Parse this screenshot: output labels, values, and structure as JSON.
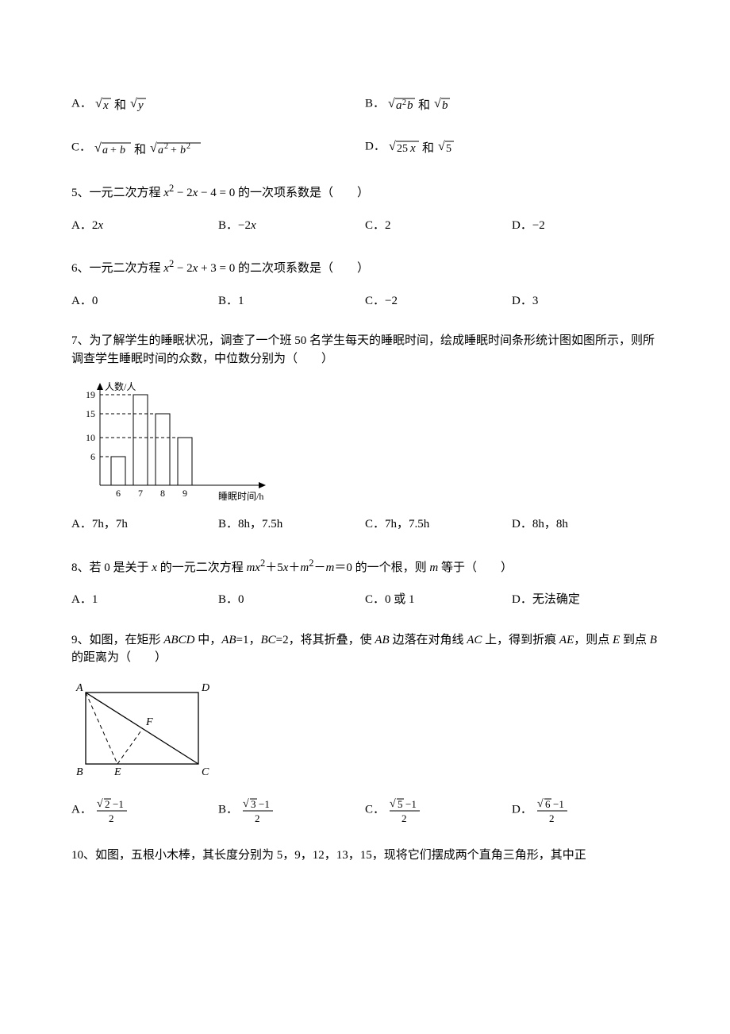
{
  "q4_options": {
    "A_label": "A．",
    "A_math_svg_text": "sqrt(x) 和 sqrt(y)",
    "B_label": "B．",
    "B_math_svg_text": "sqrt(a^2 b) 和 sqrt(b)",
    "C_label": "C．",
    "C_math_svg_text": "sqrt(a+b) 和 sqrt(a^2+b^2)",
    "D_label": "D．",
    "D_math_svg_text": "sqrt(25x) 和 sqrt(5)"
  },
  "q5": {
    "text_before": "5、一元二次方程",
    "equation": "x² − 2x − 4 = 0",
    "text_after": "的一次项系数是（　　）",
    "options": {
      "A": "A．2x",
      "B": "B．−2x",
      "C": "C．2",
      "D": "D．−2"
    }
  },
  "q6": {
    "text_before": "6、一元二次方程",
    "equation": "x² − 2x + 3 = 0",
    "text_after": "的二次项系数是（　　）",
    "options": {
      "A": "A．0",
      "B": "B．1",
      "C": "C．−2",
      "D": "D．3"
    }
  },
  "q7": {
    "text": "7、为了解学生的睡眠状况，调查了一个班 50 名学生每天的睡眠时间，绘成睡眠时间条形统计图如图所示，则所调查学生睡眠时间的众数，中位数分别为（　　）",
    "chart": {
      "x_label": "睡眠时间/h",
      "y_label": "人数/人",
      "categories": [
        "6",
        "7",
        "8",
        "9"
      ],
      "values": [
        6,
        19,
        15,
        10
      ],
      "y_ticks": [
        6,
        10,
        15,
        19
      ],
      "axis_color": "#000000",
      "bar_fill": "#ffffff",
      "bar_stroke": "#000000",
      "dashed_color": "#000000",
      "font_size": 12
    },
    "options": {
      "A": "A．7h，7h",
      "B": "B．8h，7.5h",
      "C": "C．7h，7.5h",
      "D": "D．8h，8h"
    }
  },
  "q8": {
    "text": "8、若 0 是关于 x 的一元二次方程 mx²＋5x＋m²－m＝0 的一个根，则 m 等于（　　）",
    "options": {
      "A": "A．1",
      "B": "B．0",
      "C": "C．0 或 1",
      "D": "D．无法确定"
    }
  },
  "q9": {
    "text": "9、如图，在矩形 ABCD 中，AB=1，BC=2，将其折叠，使 AB 边落在对角线 AC 上，得到折痕 AE，则点 E 到点 B 的距离为（　　）",
    "diagram": {
      "labels": {
        "A": "A",
        "B": "B",
        "C": "C",
        "D": "D",
        "E": "E",
        "F": "F"
      },
      "stroke": "#000000",
      "font_size": 14,
      "width": 170,
      "height": 110
    },
    "options": {
      "A_label": "A．",
      "A_frac": "(√2 − 1)/2",
      "B_label": "B．",
      "B_frac": "(√3 − 1)/2",
      "C_label": "C．",
      "C_frac": "(√5 − 1)/2",
      "D_label": "D．",
      "D_frac": "(√6 − 1)/2"
    }
  },
  "q10": {
    "text": "10、如图，五根小木棒，其长度分别为 5，9，12，13，15，现将它们摆成两个直角三角形，其中正"
  }
}
